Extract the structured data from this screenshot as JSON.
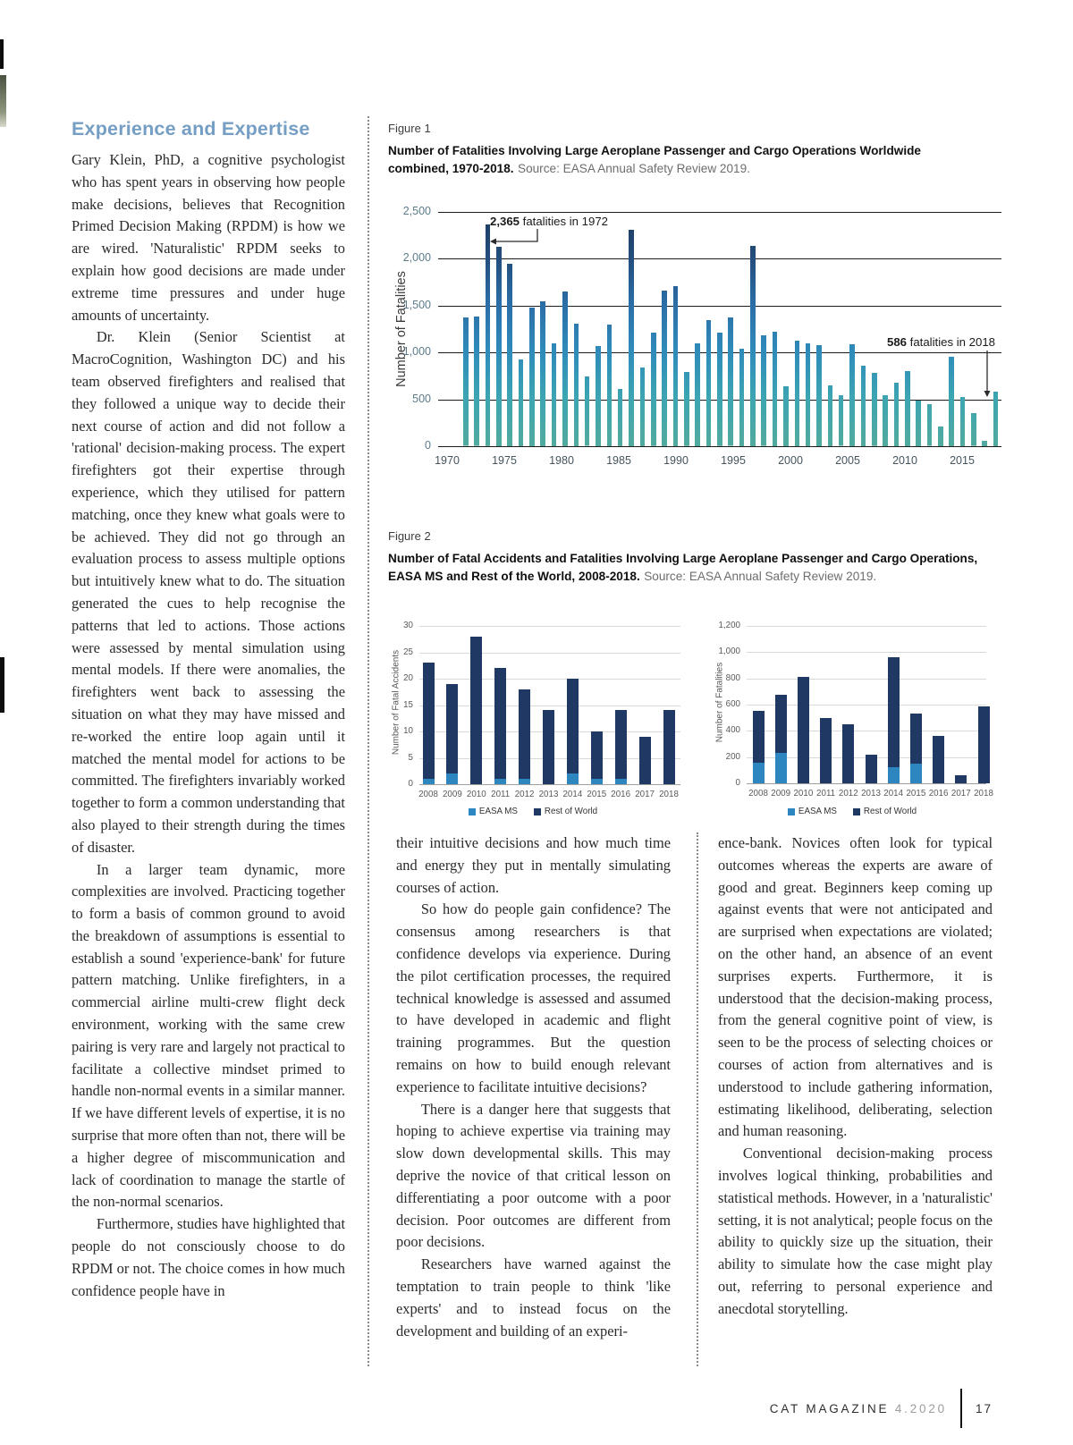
{
  "article": {
    "heading": "Experience and Expertise",
    "col1": [
      "Gary Klein, PhD, a cognitive psychologist who has spent years in observing how people make decisions, believes that Recognition Primed Decision Making (RPDM) is how we are wired. 'Naturalistic' RPDM seeks to explain how good decisions are made under extreme time pressures and under huge amounts of uncertainty.",
      "Dr. Klein (Senior Scientist at MacroCognition, Washington DC) and his team observed firefighters and realised that they followed a unique way to decide their next course of action and did not follow a 'rational' decision-making process. The expert firefighters got their expertise through experience, which they utilised for pattern matching, once they knew what goals were to be achieved. They did not go through an evaluation process to assess multiple options but intuitively knew what to do. The situation generated the cues to help recognise the patterns that led to actions. Those actions were assessed by mental simulation using mental models. If there were anomalies, the firefighters went back to assessing the situation on what they may have missed and re-worked the entire loop again until it matched the mental model for actions to be committed. The firefighters invariably worked together to form a common understanding that also played to their strength during the times of disaster.",
      "In a larger team dynamic, more complexities are involved. Practicing together to form a basis of common ground to avoid the breakdown of assumptions is essential to establish a sound 'experience-bank' for future pattern matching. Unlike firefighters, in a commercial airline multi-crew flight deck environment, working with the same crew pairing is very rare and largely not practical to facilitate a collective mindset primed to handle non-normal events in a similar manner. If we have different levels of expertise, it is no surprise that more often than not, there will be a higher degree of miscommunication and lack of coordination to manage the startle of the non-normal scenarios.",
      "Furthermore, studies have highlighted that people do not consciously choose to do RPDM or not. The choice comes in how much confidence people have in"
    ],
    "col2": [
      "their intuitive decisions and how much time and energy they put in mentally simulating courses of action.",
      "So how do people gain confidence? The consensus among researchers is that confidence develops via experience. During the pilot certification processes, the required technical knowledge is assessed and assumed to have developed in academic and flight training programmes. But the question remains on how to build enough relevant experience to facilitate intuitive decisions?",
      "There is a danger here that suggests that hoping to achieve expertise via training may slow down developmental skills. This may deprive the novice of that critical lesson on differentiating a poor outcome with a poor decision. Poor outcomes are different from poor decisions.",
      "Researchers have warned against the temptation to train people to think 'like experts' and to instead focus on the development and building of an experi-"
    ],
    "col3": [
      "ence-bank. Novices often look for typical outcomes whereas the experts are aware of good and great. Beginners keep coming up against events that were not anticipated and are surprised when expectations are violated; on the other hand, an absence of an event surprises experts. Furthermore, it is understood that the decision-making process, from the general cognitive point of view, is seen to be the process of selecting choices or courses of action from alternatives and is understood to include gathering information, estimating likelihood, deliberating, selection and human reasoning.",
      "Conventional decision-making process involves logical thinking, probabilities and statistical methods. However, in a 'naturalistic' setting, it is not analytical; people focus on the ability to quickly size up the situation, their ability to simulate how the case might play out, referring to personal experience and anecdotal storytelling."
    ]
  },
  "figure1": {
    "label": "Figure 1",
    "title": "Number of Fatalities Involving Large Aeroplane Passenger and Cargo Operations Worldwide combined, 1970-2018.",
    "source": "Source: EASA Annual Safety Review 2019."
  },
  "figure2": {
    "label": "Figure 2",
    "title": "Number of Fatal Accidents and Fatalities Involving Large Aeroplane Passenger and Cargo Operations, EASA MS and Rest of the World, 2008-2018.",
    "source": "Source: EASA Annual Safety Review 2019."
  },
  "footer": {
    "magazine": "CAT MAGAZINE",
    "issue": "4.2020",
    "page_number": "17"
  },
  "chart_data": [
    {
      "type": "bar",
      "title": "Number of Fatalities Involving Large Aeroplane Passenger and Cargo Operations Worldwide combined, 1970-2018",
      "ylabel": "Number of Fatalities",
      "ylim": [
        0,
        2500
      ],
      "ytick_labels": [
        "2,500",
        "2,000",
        "1,500",
        "1,000",
        "500",
        "0"
      ],
      "xtick_labels": [
        "1970",
        "1975",
        "1980",
        "1985",
        "1990",
        "1995",
        "2000",
        "2005",
        "2010",
        "2015"
      ],
      "x_start": 1970,
      "x_end": 2018,
      "values": [
        1370,
        1380,
        2365,
        2130,
        1950,
        930,
        1480,
        1550,
        1100,
        1650,
        1310,
        740,
        1070,
        1300,
        610,
        2310,
        840,
        1210,
        1660,
        1710,
        790,
        1100,
        1350,
        1210,
        1370,
        1040,
        2140,
        1180,
        1225,
        640,
        1130,
        1100,
        1080,
        650,
        540,
        1090,
        860,
        780,
        545,
        680,
        805,
        490,
        445,
        210,
        955,
        525,
        350,
        60,
        586
      ],
      "grid": true,
      "legend_position": "none",
      "annotations": [
        {
          "bold": "2,365",
          "text": " fatalities in 1972",
          "year": 1972,
          "value": 2365
        },
        {
          "bold": "586",
          "text": " fatalities in 2018",
          "year": 2018,
          "value": 586
        }
      ],
      "bar_gradient_bottom_to_top": [
        "#52aa9e",
        "#3da5b2",
        "#2f8cba",
        "#2b6fa8",
        "#234e7e",
        "#1b3a5e"
      ]
    },
    {
      "type": "bar",
      "stacked": true,
      "ylabel": "Number of Fatal Accidents",
      "ylim": [
        0,
        30
      ],
      "ytick_labels": [
        "30",
        "25",
        "20",
        "15",
        "10",
        "5",
        "0"
      ],
      "categories": [
        "2008",
        "2009",
        "2010",
        "2011",
        "2012",
        "2013",
        "2014",
        "2015",
        "2016",
        "2017",
        "2018"
      ],
      "series": [
        {
          "name": "EASA MS",
          "color": "#2e86c0",
          "values": [
            1,
            2,
            0,
            1,
            1,
            0,
            2,
            1,
            1,
            0,
            0
          ]
        },
        {
          "name": "Rest of World",
          "color": "#1f3864",
          "values": [
            22,
            17,
            28,
            21,
            17,
            14,
            18,
            9,
            13,
            9,
            14
          ]
        }
      ],
      "grid": true,
      "legend_position": "bottom"
    },
    {
      "type": "bar",
      "stacked": true,
      "ylabel": "Number of Fatalities",
      "ylim": [
        0,
        1200
      ],
      "ytick_labels": [
        "1,200",
        "1,000",
        "800",
        "600",
        "400",
        "200",
        "0"
      ],
      "categories": [
        "2008",
        "2009",
        "2010",
        "2011",
        "2012",
        "2013",
        "2014",
        "2015",
        "2016",
        "2017",
        "2018"
      ],
      "series": [
        {
          "name": "EASA MS",
          "color": "#2e86c0",
          "values": [
            155,
            230,
            0,
            0,
            0,
            0,
            120,
            150,
            0,
            0,
            0
          ]
        },
        {
          "name": "Rest of World",
          "color": "#1f3864",
          "values": [
            400,
            445,
            810,
            495,
            450,
            218,
            840,
            380,
            360,
            62,
            586
          ]
        }
      ],
      "grid": true,
      "legend_position": "bottom"
    }
  ]
}
